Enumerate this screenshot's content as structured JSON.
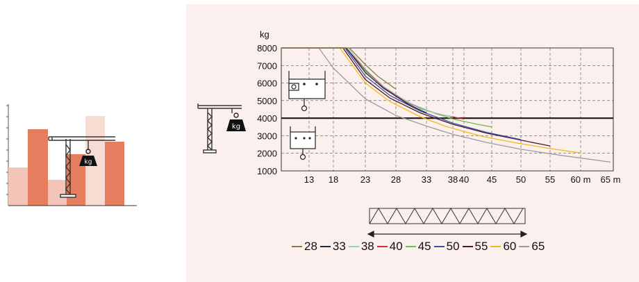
{
  "chart_data": {
    "type": "line",
    "title": "",
    "xlabel": "m",
    "ylabel": "kg",
    "xlim": [
      10,
      65
    ],
    "ylim": [
      1000,
      8000
    ],
    "grid": true,
    "legend_position": "bottom",
    "x_tick_labels": [
      "13",
      "18",
      "23",
      "28",
      "33",
      "38",
      "40",
      "45",
      "50",
      "55",
      "60 m",
      "65 m"
    ],
    "x_ticks": [
      13,
      18,
      23,
      28,
      33,
      38,
      40,
      45,
      50,
      55,
      60,
      65
    ],
    "y_ticks": [
      1000,
      2000,
      3000,
      4000,
      5000,
      6000,
      7000,
      8000
    ],
    "y_tick_labels": [
      "1000",
      "2000",
      "3000",
      "4000",
      "5000",
      "6000",
      "7000",
      "8000"
    ],
    "reference_line": 4000,
    "series": [
      {
        "name": "28",
        "color": "#8b7a3c",
        "x": [
          10,
          20.5,
          23,
          25,
          28
        ],
        "y": [
          8000,
          8000,
          7050,
          6400,
          5650
        ]
      },
      {
        "name": "33",
        "color": "#1f2a44",
        "x": [
          10,
          20,
          23,
          26,
          30,
          33
        ],
        "y": [
          8000,
          8000,
          6600,
          5700,
          4800,
          4300
        ]
      },
      {
        "name": "38",
        "color": "#8fd1cf",
        "x": [
          10,
          20.3,
          23,
          26,
          30,
          34,
          38
        ],
        "y": [
          8000,
          8000,
          6800,
          5800,
          4900,
          4350,
          4050
        ]
      },
      {
        "name": "40",
        "color": "#d42b2b",
        "x": [
          10,
          20,
          23,
          26,
          30,
          35,
          40
        ],
        "y": [
          8000,
          8000,
          6750,
          5750,
          4850,
          4250,
          3950
        ]
      },
      {
        "name": "45",
        "color": "#6fbf4b",
        "x": [
          10,
          20,
          23,
          27,
          32,
          38,
          42,
          45
        ],
        "y": [
          8000,
          8000,
          6700,
          5500,
          4550,
          3950,
          3680,
          3500
        ]
      },
      {
        "name": "50",
        "color": "#3a4fa3",
        "x": [
          10,
          19.8,
          23,
          27,
          32,
          38,
          44,
          50
        ],
        "y": [
          8000,
          8000,
          6400,
          5300,
          4400,
          3720,
          3200,
          2780
        ]
      },
      {
        "name": "55",
        "color": "#4a1a24",
        "x": [
          10,
          19.5,
          23,
          27,
          32,
          38,
          44,
          50,
          55
        ],
        "y": [
          8000,
          8000,
          6200,
          5150,
          4300,
          3650,
          3150,
          2750,
          2420
        ]
      },
      {
        "name": "60",
        "color": "#f2b81c",
        "x": [
          10,
          19,
          23,
          27,
          32,
          37,
          43,
          49,
          55,
          60
        ],
        "y": [
          8000,
          8000,
          6000,
          4950,
          4080,
          3500,
          2980,
          2600,
          2270,
          2020
        ]
      },
      {
        "name": "65",
        "color": "#9a9a9a",
        "x": [
          10,
          15,
          18,
          23,
          28,
          33,
          38,
          44,
          50,
          56,
          65
        ],
        "y": [
          8000,
          8000,
          6850,
          5100,
          4150,
          3550,
          3080,
          2620,
          2230,
          1920,
          1500
        ]
      }
    ]
  },
  "illustration": {
    "kg_label_small": "kg",
    "kg_label_large": "kg",
    "kg_label_chart": "kg"
  }
}
